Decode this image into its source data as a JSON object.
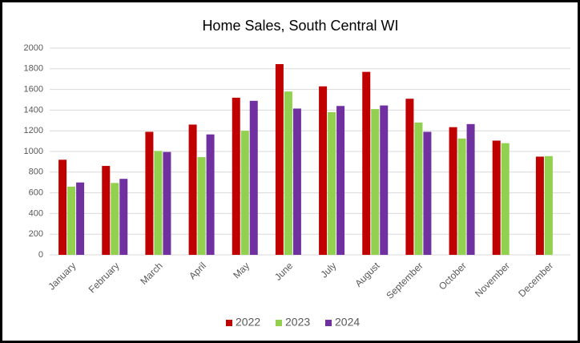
{
  "chart_data": {
    "type": "bar",
    "title": "Home Sales, South Central WI",
    "categories": [
      "January",
      "February",
      "March",
      "April",
      "May",
      "June",
      "July",
      "August",
      "September",
      "October",
      "November",
      "December"
    ],
    "series": [
      {
        "name": "2022",
        "color": "#c00000",
        "values": [
          920,
          860,
          1190,
          1260,
          1520,
          1845,
          1630,
          1770,
          1510,
          1235,
          1105,
          950
        ]
      },
      {
        "name": "2023",
        "color": "#92d050",
        "values": [
          660,
          695,
          1005,
          945,
          1200,
          1580,
          1380,
          1410,
          1280,
          1125,
          1080,
          955
        ]
      },
      {
        "name": "2024",
        "color": "#7030a0",
        "values": [
          700,
          735,
          995,
          1165,
          1490,
          1415,
          1440,
          1445,
          1190,
          1265,
          null,
          null
        ]
      }
    ],
    "ylim": [
      0,
      2000
    ],
    "yticks": [
      0,
      200,
      400,
      600,
      800,
      1000,
      1200,
      1400,
      1600,
      1800,
      2000
    ],
    "grid": true,
    "legend": "bottom"
  }
}
